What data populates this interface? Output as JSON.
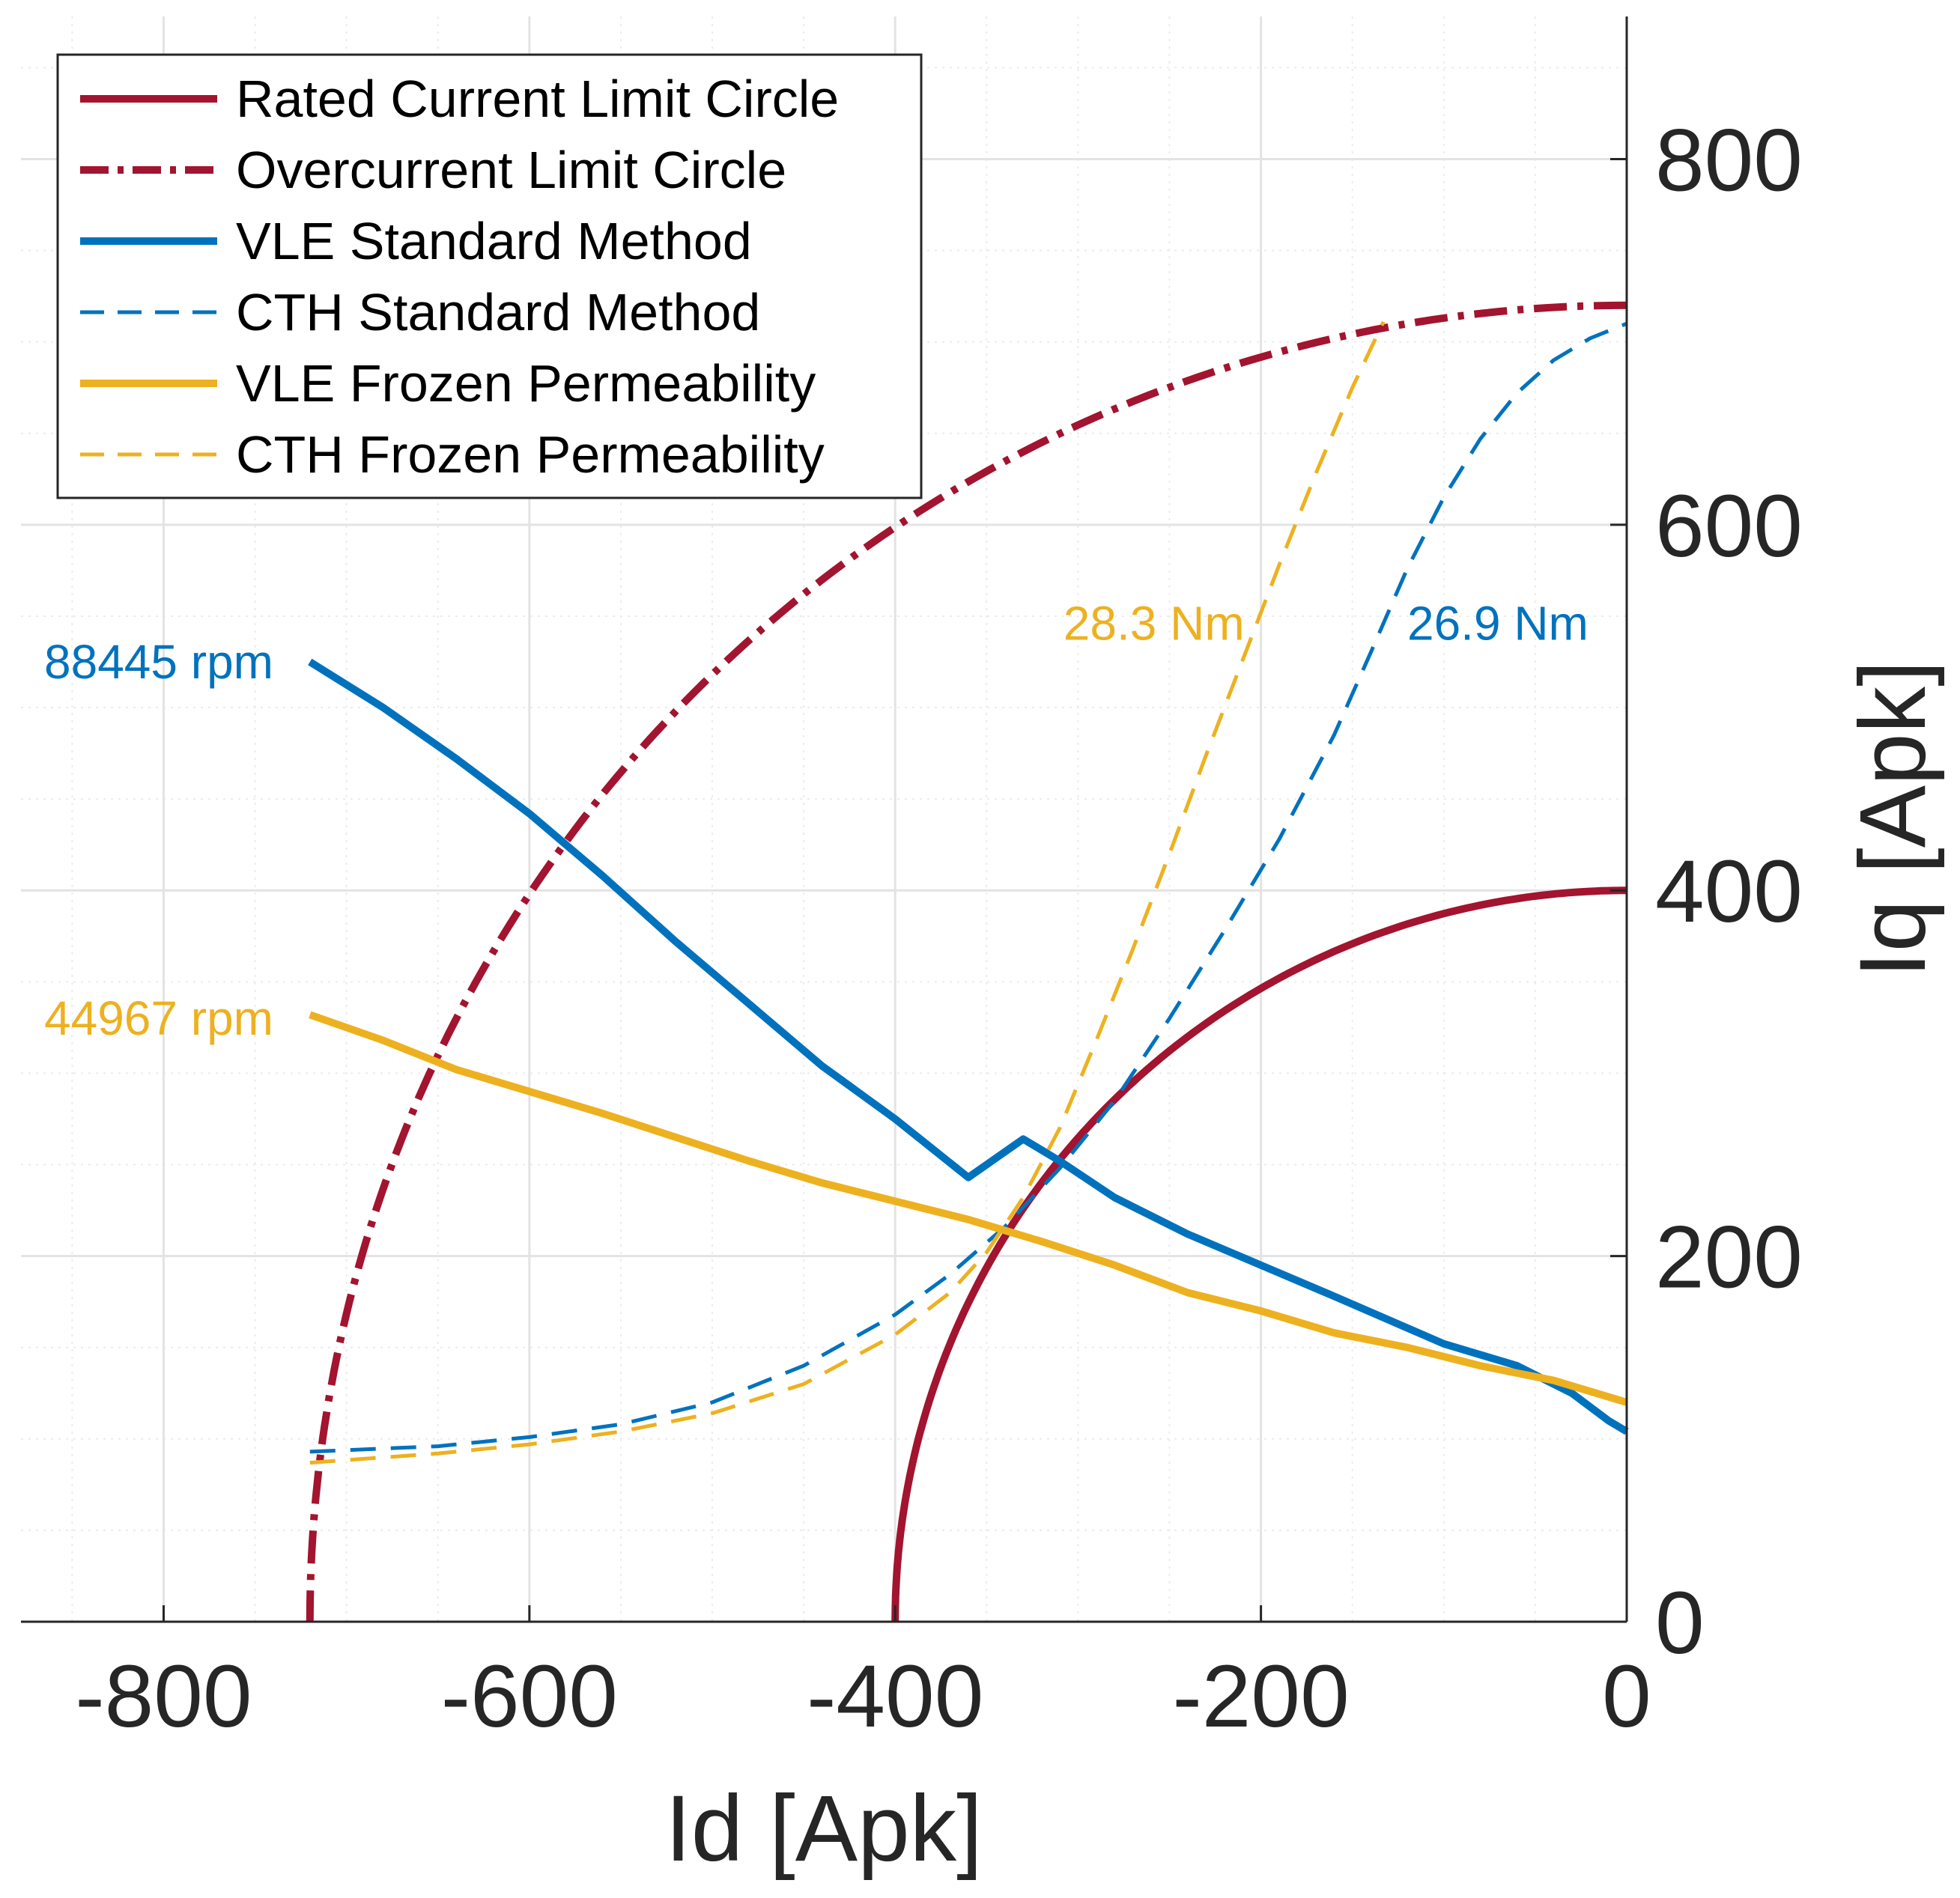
{
  "chart_data": {
    "type": "line",
    "title": "",
    "xlabel": "Id [Apk]",
    "ylabel": "Iq [Apk]",
    "xlim": [
      -878,
      0
    ],
    "ylim": [
      0,
      878
    ],
    "xticks": [
      -800,
      -600,
      -400,
      -200,
      0
    ],
    "yticks": [
      0,
      200,
      400,
      600,
      800
    ],
    "xtick_labels": [
      "-800",
      "-600",
      "-400",
      "-200",
      "0"
    ],
    "ytick_labels": [
      "0",
      "200",
      "400",
      "600",
      "800"
    ],
    "grid": true,
    "minor_grid": true,
    "y_axis_location": "right",
    "legend_position": "top-left",
    "series": [
      {
        "name": "Rated Current Limit Circle",
        "color": "#A2142F",
        "style": "solid",
        "kind": "arc",
        "radius": 400,
        "angle_range_deg": [
          90,
          180
        ]
      },
      {
        "name": "Overcurrent Limit Circle",
        "color": "#A2142F",
        "style": "dashdot",
        "kind": "arc",
        "radius": 720,
        "angle_range_deg": [
          90,
          180
        ]
      },
      {
        "name": "VLE Standard Method",
        "color": "#0072BD",
        "style": "solid",
        "x": [
          -720,
          -680,
          -640,
          -600,
          -560,
          -520,
          -480,
          -440,
          -400,
          -360,
          -330,
          -310,
          -280,
          -240,
          -200,
          -160,
          -130,
          -100,
          -60,
          -30,
          -10,
          0
        ],
        "y": [
          525,
          500,
          472,
          442,
          408,
          372,
          338,
          304,
          275,
          243,
          264,
          252,
          232,
          212,
          195,
          178,
          165,
          152,
          140,
          125,
          110,
          104
        ]
      },
      {
        "name": "CTH Standard Method",
        "color": "#0072BD",
        "style": "dashed",
        "x": [
          -720,
          -650,
          -600,
          -550,
          -500,
          -450,
          -400,
          -370,
          -340,
          -310,
          -280,
          -250,
          -220,
          -190,
          -160,
          -140,
          -120,
          -100,
          -80,
          -60,
          -40,
          -20,
          0
        ],
        "y": [
          93,
          96,
          101,
          108,
          120,
          140,
          168,
          190,
          216,
          248,
          285,
          330,
          378,
          428,
          485,
          530,
          576,
          615,
          647,
          672,
          690,
          702,
          710
        ]
      },
      {
        "name": "VLE Frozen Permeability",
        "color": "#EDB120",
        "style": "solid",
        "x": [
          -720,
          -680,
          -640,
          -600,
          -560,
          -520,
          -480,
          -440,
          -400,
          -360,
          -320,
          -280,
          -240,
          -200,
          -160,
          -120,
          -80,
          -40,
          0
        ],
        "y": [
          332,
          318,
          302,
          290,
          278,
          265,
          252,
          240,
          230,
          220,
          208,
          195,
          180,
          170,
          158,
          150,
          140,
          132,
          120
        ]
      },
      {
        "name": "CTH Frozen Permeability",
        "color": "#EDB120",
        "style": "dashed",
        "x": [
          -720,
          -650,
          -600,
          -550,
          -500,
          -450,
          -400,
          -370,
          -350,
          -330,
          -310,
          -290,
          -270,
          -250,
          -230,
          -210,
          -190,
          -170,
          -150,
          -133
        ],
        "y": [
          87,
          92,
          97,
          104,
          114,
          130,
          157,
          180,
          202,
          232,
          270,
          318,
          368,
          420,
          474,
          526,
          578,
          628,
          675,
          711
        ]
      }
    ],
    "annotations": [
      {
        "text": "88445 rpm",
        "color": "#0072BD",
        "x": -740,
        "y": 525,
        "anchor": "end"
      },
      {
        "text": "44967 rpm",
        "color": "#EDB120",
        "x": -740,
        "y": 330,
        "anchor": "end"
      },
      {
        "text": "28.3 Nm",
        "color": "#EDB120",
        "x": -209,
        "y": 546,
        "anchor": "end"
      },
      {
        "text": "26.9 Nm",
        "color": "#0072BD",
        "x": -120,
        "y": 546,
        "anchor": "start"
      }
    ]
  }
}
